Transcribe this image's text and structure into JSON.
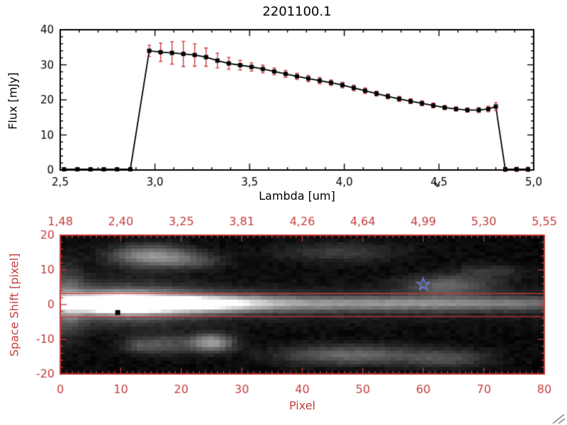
{
  "chart_data": [
    {
      "type": "line",
      "title": "2201100.1",
      "xlabel": "Lambda [um]",
      "ylabel": "Flux [mJy]",
      "xlim": [
        2.5,
        5.0
      ],
      "ylim": [
        0,
        40
      ],
      "xticks": {
        "values": [
          2.5,
          3.0,
          3.5,
          4.0,
          4.5,
          5.0
        ],
        "labels": [
          "2,5",
          "3,0",
          "3,5",
          "4,0",
          "4,5",
          "5,0"
        ],
        "minor_step": 0.1
      },
      "yticks": {
        "values": [
          0,
          10,
          20,
          30,
          40
        ],
        "labels": [
          "0",
          "10",
          "20",
          "30",
          "40"
        ],
        "minor_step": 2
      },
      "line_color": "#000000",
      "marker": "filled-square",
      "error_color": "#c83232",
      "cursor_marker_x": 4.49,
      "points_format": "[lambda_um, flux_mjy, flux_err_mjy]",
      "points": [
        [
          2.52,
          0.2,
          0.4
        ],
        [
          2.59,
          0.2,
          0.4
        ],
        [
          2.66,
          0.2,
          0.4
        ],
        [
          2.73,
          0.2,
          0.4
        ],
        [
          2.8,
          0.2,
          0.4
        ],
        [
          2.87,
          0.2,
          0.4
        ],
        [
          2.97,
          34.0,
          1.6
        ],
        [
          3.03,
          33.6,
          2.6
        ],
        [
          3.09,
          33.4,
          3.2
        ],
        [
          3.15,
          33.1,
          3.6
        ],
        [
          3.21,
          32.8,
          3.2
        ],
        [
          3.27,
          32.2,
          2.6
        ],
        [
          3.33,
          31.2,
          2.1
        ],
        [
          3.39,
          30.4,
          1.7
        ],
        [
          3.45,
          29.9,
          1.4
        ],
        [
          3.51,
          29.4,
          1.2
        ],
        [
          3.57,
          28.8,
          1.1
        ],
        [
          3.63,
          28.1,
          1.0
        ],
        [
          3.69,
          27.4,
          1.0
        ],
        [
          3.75,
          26.7,
          0.9
        ],
        [
          3.81,
          26.1,
          0.9
        ],
        [
          3.87,
          25.5,
          0.9
        ],
        [
          3.93,
          24.9,
          0.8
        ],
        [
          3.99,
          24.2,
          0.8
        ],
        [
          4.05,
          23.4,
          0.8
        ],
        [
          4.11,
          22.6,
          0.8
        ],
        [
          4.17,
          21.8,
          0.7
        ],
        [
          4.23,
          21.0,
          0.7
        ],
        [
          4.29,
          20.3,
          0.7
        ],
        [
          4.35,
          19.6,
          0.7
        ],
        [
          4.41,
          19.0,
          0.7
        ],
        [
          4.47,
          18.4,
          0.7
        ],
        [
          4.53,
          17.8,
          0.6
        ],
        [
          4.59,
          17.4,
          0.6
        ],
        [
          4.65,
          17.1,
          0.6
        ],
        [
          4.71,
          17.1,
          0.7
        ],
        [
          4.76,
          17.4,
          0.8
        ],
        [
          4.8,
          18.1,
          1.1
        ],
        [
          4.85,
          0.2,
          0.6
        ],
        [
          4.91,
          0.2,
          0.6
        ],
        [
          4.97,
          0.2,
          0.6
        ]
      ]
    },
    {
      "type": "heatmap",
      "xlabel": "Pixel",
      "ylabel": "Space Shift [pixel]",
      "axis_color": "#c43c3c",
      "aperture_color": "#cc3333",
      "xlim": [
        0,
        80
      ],
      "ylim": [
        -20,
        20
      ],
      "xticks": {
        "values": [
          0,
          10,
          20,
          30,
          40,
          50,
          60,
          70,
          80
        ],
        "labels": [
          "0",
          "10",
          "20",
          "30",
          "40",
          "50",
          "60",
          "70",
          "80"
        ]
      },
      "yticks": {
        "values": [
          -20,
          -10,
          0,
          10,
          20
        ],
        "labels": [
          "-20",
          "-10",
          "0",
          "10",
          "20"
        ]
      },
      "top_axis_labels": [
        "1,48",
        "2,40",
        "3,25",
        "3,81",
        "4,26",
        "4,64",
        "4,99",
        "5,30",
        "5,55"
      ],
      "aperture_lines": [
        3.2,
        -3.5
      ],
      "star_marker": {
        "x": 60,
        "y": 5.8,
        "color": "#6b86ea"
      },
      "square_marker": {
        "x": 9.5,
        "y": -2.3,
        "color": "#000000"
      },
      "grid": {
        "nx": 82,
        "ny": 41
      },
      "blobs_format": "[x_center, y_center, sigma_x, sigma_y, amplitude]",
      "blobs": [
        [
          9,
          0.4,
          4.5,
          1.5,
          1.3
        ],
        [
          10,
          0.3,
          9.0,
          4.0,
          0.4
        ],
        [
          18,
          0.3,
          10.0,
          1.6,
          1.0
        ],
        [
          55,
          0.3,
          35.0,
          1.4,
          0.42
        ],
        [
          35,
          0.2,
          38.0,
          3.4,
          0.14
        ],
        [
          15,
          14.0,
          4.5,
          2.2,
          0.52
        ],
        [
          22,
          12.5,
          3.5,
          1.6,
          0.2
        ],
        [
          46,
          15.0,
          7.0,
          2.0,
          0.18
        ],
        [
          64,
          5.5,
          5.0,
          2.0,
          0.32
        ],
        [
          71,
          9.5,
          4.0,
          1.5,
          0.15
        ],
        [
          25,
          -11.0,
          2.5,
          1.8,
          0.55
        ],
        [
          17,
          -11.5,
          3.5,
          2.0,
          0.25
        ],
        [
          13,
          -12.0,
          2.0,
          1.4,
          0.15
        ],
        [
          48,
          -14.5,
          8.0,
          2.0,
          0.35
        ],
        [
          64,
          -15.5,
          5.0,
          1.8,
          0.22
        ],
        [
          1,
          1.0,
          2.0,
          7.0,
          0.3
        ]
      ]
    }
  ]
}
